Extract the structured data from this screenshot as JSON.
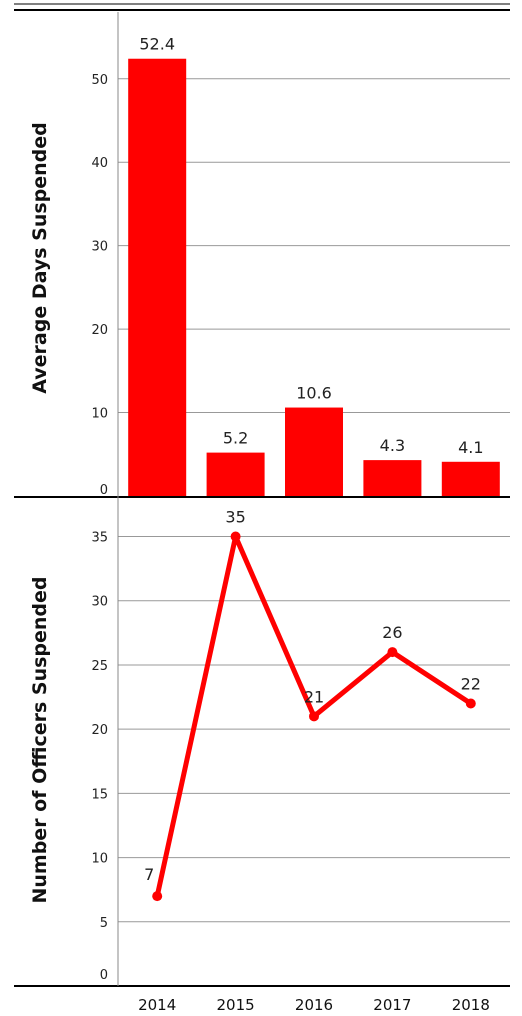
{
  "chart_data": [
    {
      "type": "bar",
      "categories": [
        "2014",
        "2015",
        "2016",
        "2017",
        "2018"
      ],
      "values": [
        52.4,
        5.2,
        10.6,
        4.3,
        4.1
      ],
      "data_labels": [
        "52.4",
        "5.2",
        "10.6",
        "4.3",
        "4.1"
      ],
      "ylabel": "Average Days Suspended",
      "ylim": [
        0,
        58
      ],
      "yticks": [
        0,
        10,
        20,
        30,
        40,
        50
      ],
      "grid": true,
      "color": "#ff0000"
    },
    {
      "type": "line",
      "categories": [
        "2014",
        "2015",
        "2016",
        "2017",
        "2018"
      ],
      "values": [
        7,
        35,
        21,
        26,
        22
      ],
      "data_labels": [
        "7",
        "35",
        "21",
        "26",
        "22"
      ],
      "ylabel": "Number of Officers Suspended",
      "ylim": [
        0,
        38
      ],
      "yticks": [
        0,
        5,
        10,
        15,
        20,
        25,
        30,
        35
      ],
      "grid": true,
      "color": "#ff0000"
    }
  ]
}
